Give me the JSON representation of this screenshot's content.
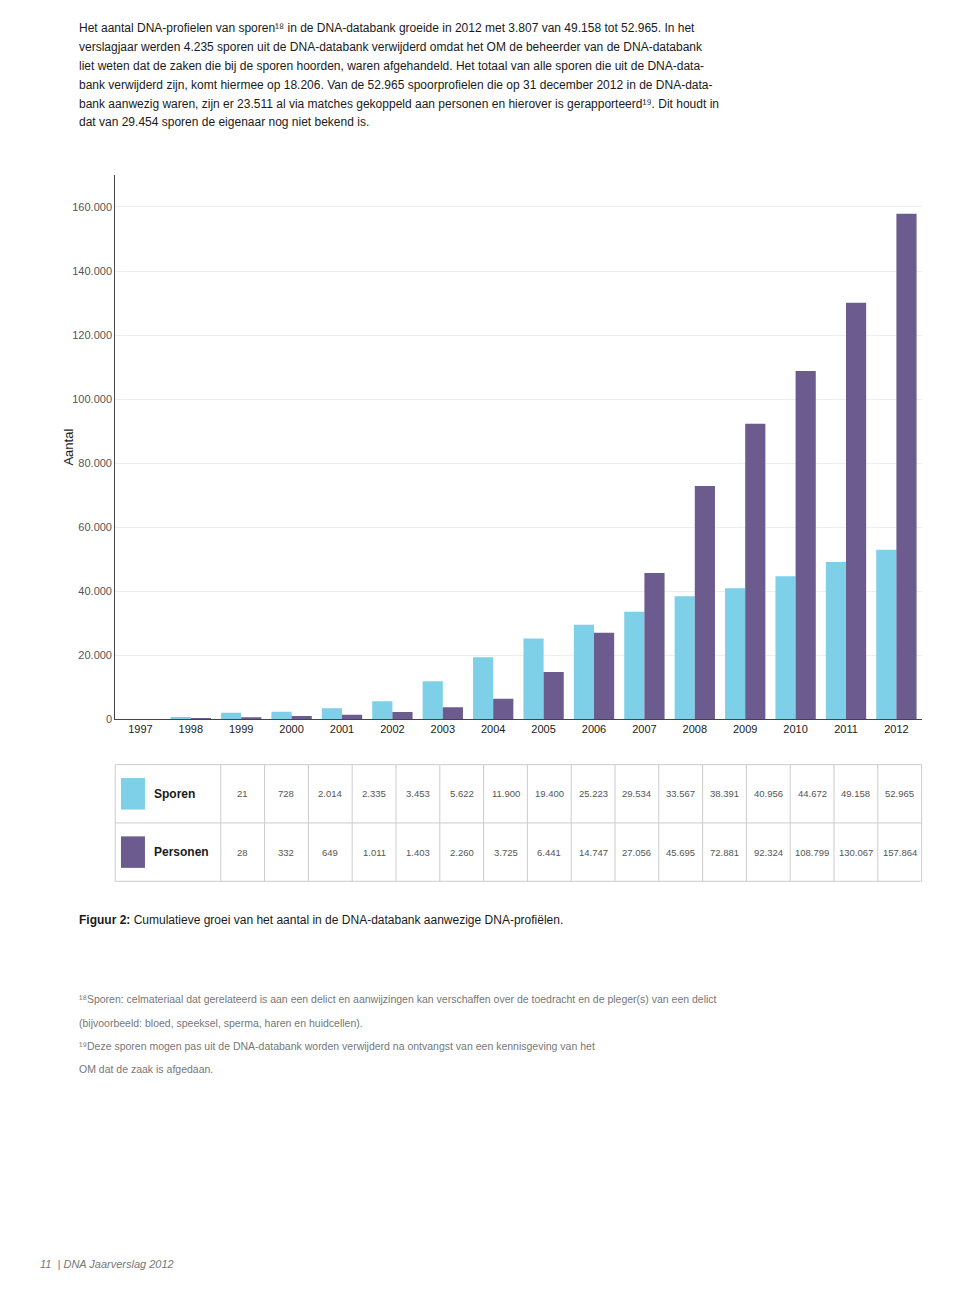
{
  "chart_data": {
    "type": "bar",
    "subtitle": [
      "Het aantal DNA-profielen van sporen¹⁸ in de DNA-databank groeide in 2012 met 3.807 van 49.158 tot 52.965. In het",
      "verslagjaar werden 4.235 sporen uit de DNA-databank verwijderd omdat het OM de beheerder van de DNA-databank",
      "liet weten dat de zaken die bij de sporen hoorden, waren afgehandeld. Het totaal van alle sporen die uit de DNA-data-",
      "bank verwijderd zijn, komt hiermee op 18.206. Van de 52.965 spoorprofielen die op 31 december 2012 in de DNA-data-",
      "bank aanwezig waren, zijn er 23.511 al via matches gekoppeld aan personen en hierover is gerapporteerd¹⁹. Dit houdt in",
      "dat van 29.454 sporen de eigenaar nog niet bekend is."
    ],
    "title": "Figuur 2: Cumulatieve groei van het aantal in de DNA-databank aanwezige DNA-profiëlen.",
    "categories": [
      "1997",
      "1998",
      "1999",
      "2000",
      "2001",
      "2002",
      "2003",
      "2004",
      "2005",
      "2006",
      "2007",
      "2008",
      "2009",
      "2010",
      "2011",
      "2012"
    ],
    "series": [
      {
        "name": "Sporen",
        "color": "#7ecfe8",
        "values": [
          21,
          728,
          2014,
          2335,
          3453,
          5622,
          11900,
          19400,
          25223,
          29534,
          33567,
          38391,
          40956,
          44672,
          49158,
          52965
        ],
        "value_labels": [
          "21",
          "728",
          "2.014",
          "2.335",
          "3.453",
          "5.622",
          "11.900",
          "19.400",
          "25.223",
          "29.534",
          "33.567",
          "38.391",
          "40.956",
          "44.672",
          "49.158",
          "52.965"
        ]
      },
      {
        "name": "Personen",
        "color": "#6b5b8e",
        "values": [
          28,
          332,
          649,
          1011,
          1403,
          2260,
          3725,
          6441,
          14747,
          27056,
          45695,
          72881,
          92324,
          108799,
          130067,
          157864
        ],
        "value_labels": [
          "28",
          "332",
          "649",
          "1.011",
          "1.403",
          "2.260",
          "3.725",
          "6.441",
          "14.747",
          "27.056",
          "45.695",
          "72.881",
          "92.324",
          "108.799",
          "130.067",
          "157.864"
        ]
      }
    ],
    "ylabel": "Aantal",
    "ylim": [
      0,
      170000
    ],
    "yticks": [
      0,
      {
        "value": 20000,
        "label": "20.000"
      },
      {
        "value": 40000,
        "label": "40.000"
      },
      {
        "value": 60000,
        "label": "60.000"
      },
      {
        "value": 80000,
        "label": "80.000"
      },
      {
        "value": 100000,
        "label": "100.000"
      },
      {
        "value": 120000,
        "label": "120.000"
      },
      {
        "value": 140000,
        "label": "140.000"
      },
      {
        "value": 160000,
        "label": "160.000"
      }
    ],
    "grid": true,
    "annotations": [
      "¹⁸Sporen: celmateriaal dat gerelateerd is aan een delict en aanwijzingen kan verschaffen over de toedracht en de pleger(s) van een delict",
      "(bijvoorbeeld: bloed, speeksel, sperma, haren en huidcellen).",
      "¹⁹Deze sporen mogen pas uit de DNA-databank worden verwijderd na ontvangst van een kennisgeving van het",
      "OM dat de zaak is afgedaan.",
      "11  | DNA Jaarverslag 2012"
    ]
  }
}
